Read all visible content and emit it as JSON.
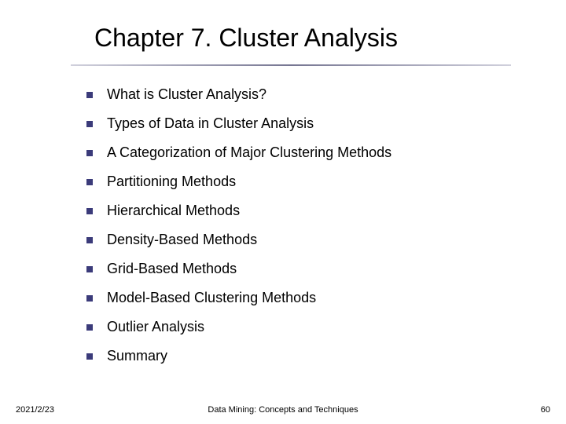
{
  "slide": {
    "title": "Chapter 7. Cluster Analysis",
    "title_fontsize": 32,
    "title_color": "#000000",
    "underline_color_start": "rgba(100,100,140,0.3)",
    "underline_color_mid": "rgba(60,60,100,0.7)",
    "bullets": [
      {
        "text": "What is Cluster Analysis?"
      },
      {
        "text": "Types of Data in Cluster Analysis"
      },
      {
        "text": "A Categorization of Major Clustering Methods"
      },
      {
        "text": "Partitioning Methods"
      },
      {
        "text": "Hierarchical Methods"
      },
      {
        "text": "Density-Based Methods"
      },
      {
        "text": "Grid-Based Methods"
      },
      {
        "text": "Model-Based Clustering Methods"
      },
      {
        "text": "Outlier Analysis"
      },
      {
        "text": "Summary"
      }
    ],
    "bullet_marker_color": "#3b3b7a",
    "bullet_marker_size": 8,
    "bullet_fontsize": 18,
    "bullet_color": "#000000",
    "background_color": "#ffffff"
  },
  "footer": {
    "date": "2021/2/23",
    "center": "Data Mining: Concepts and Techniques",
    "page": "60",
    "fontsize": 11,
    "color": "#000000"
  }
}
